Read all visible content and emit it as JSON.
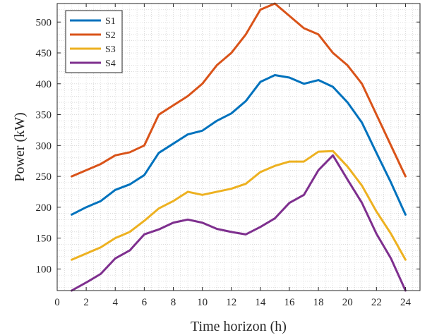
{
  "chart_data": {
    "type": "line",
    "title": "",
    "xlabel": "Time horizon (h)",
    "ylabel": "Power (kW)",
    "xlim": [
      0,
      25
    ],
    "ylim": [
      65,
      530
    ],
    "xticks": [
      0,
      2,
      4,
      6,
      8,
      10,
      12,
      14,
      16,
      18,
      20,
      22,
      24
    ],
    "yticks": [
      100,
      150,
      200,
      250,
      300,
      350,
      400,
      450,
      500
    ],
    "grid": "minor dotted",
    "legend_position": "top-left",
    "x": [
      1,
      2,
      3,
      4,
      5,
      6,
      7,
      8,
      9,
      10,
      11,
      12,
      13,
      14,
      15,
      16,
      17,
      18,
      19,
      20,
      21,
      22,
      23,
      24
    ],
    "series": [
      {
        "name": "S1",
        "color": "#0072BD",
        "values": [
          188,
          200,
          210,
          228,
          237,
          252,
          288,
          303,
          318,
          324,
          340,
          352,
          372,
          403,
          414,
          410,
          400,
          406,
          395,
          370,
          337,
          288,
          240,
          188
        ]
      },
      {
        "name": "S2",
        "color": "#D95319",
        "values": [
          250,
          260,
          270,
          284,
          289,
          300,
          350,
          365,
          380,
          400,
          430,
          450,
          480,
          520,
          530,
          510,
          490,
          480,
          450,
          430,
          400,
          350,
          300,
          250
        ]
      },
      {
        "name": "S3",
        "color": "#EDB120",
        "values": [
          115,
          125,
          135,
          150,
          160,
          178,
          198,
          210,
          225,
          220,
          225,
          230,
          238,
          257,
          267,
          274,
          274,
          290,
          291,
          266,
          235,
          193,
          157,
          115
        ]
      },
      {
        "name": "S4",
        "color": "#7E2F8E",
        "values": [
          65,
          78,
          92,
          117,
          130,
          156,
          164,
          175,
          180,
          175,
          165,
          160,
          156,
          168,
          182,
          207,
          220,
          260,
          284,
          245,
          207,
          157,
          117,
          65
        ]
      }
    ]
  }
}
